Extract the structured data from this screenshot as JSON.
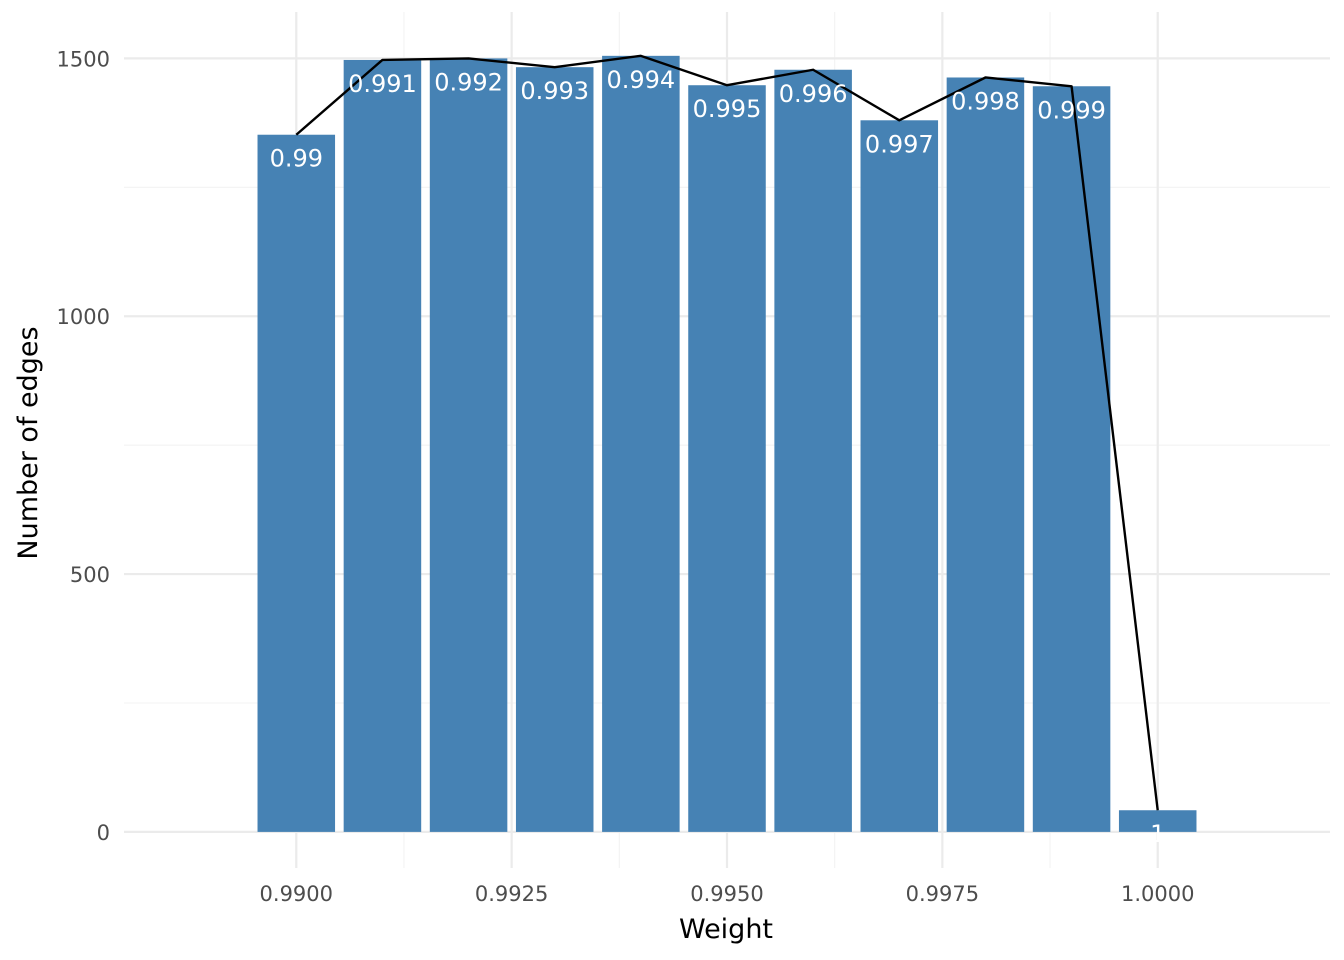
{
  "chart_data": {
    "type": "bar",
    "xlabel": "Weight",
    "ylabel": "Number of edges",
    "xlim": [
      0.988,
      1.002
    ],
    "ylim": [
      -70,
      1590
    ],
    "x_ticks": [
      0.99,
      0.9925,
      0.995,
      0.9975,
      1.0
    ],
    "x_tick_labels": [
      "0.9900",
      "0.9925",
      "0.9950",
      "0.9975",
      "1.0000"
    ],
    "y_ticks": [
      0,
      500,
      1000,
      1500
    ],
    "y_tick_labels": [
      "0",
      "500",
      "1000",
      "1500"
    ],
    "grid": true,
    "bar_color": "#4682b4",
    "line_color": "#000000",
    "bar_width": 0.0009,
    "bars": [
      {
        "x": 0.99,
        "value": 1352,
        "label": "0.99"
      },
      {
        "x": 0.991,
        "value": 1497,
        "label": "0.991"
      },
      {
        "x": 0.992,
        "value": 1500,
        "label": "0.992"
      },
      {
        "x": 0.993,
        "value": 1483,
        "label": "0.993"
      },
      {
        "x": 0.994,
        "value": 1505,
        "label": "0.994"
      },
      {
        "x": 0.995,
        "value": 1448,
        "label": "0.995"
      },
      {
        "x": 0.996,
        "value": 1478,
        "label": "0.996"
      },
      {
        "x": 0.997,
        "value": 1380,
        "label": "0.997"
      },
      {
        "x": 0.998,
        "value": 1463,
        "label": "0.998"
      },
      {
        "x": 0.999,
        "value": 1446,
        "label": "0.999"
      },
      {
        "x": 1.0,
        "value": 42,
        "label": "1"
      }
    ]
  }
}
